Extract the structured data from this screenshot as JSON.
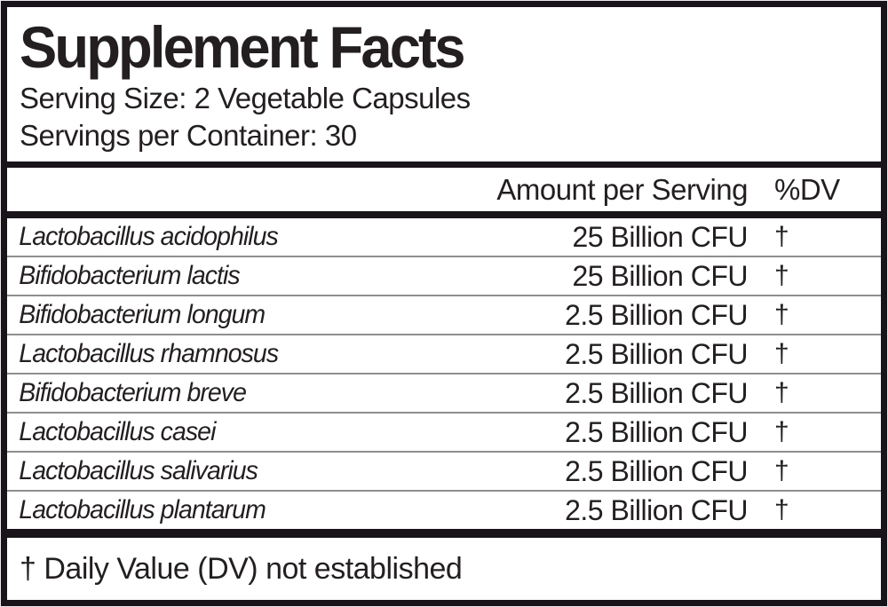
{
  "label": {
    "title": "Supplement Facts",
    "serving_size": "Serving Size: 2 Vegetable Capsules",
    "servings_per_container": "Servings per Container: 30",
    "columns": {
      "amount": "Amount per Serving",
      "dv": "%DV"
    },
    "rows": [
      {
        "name": "Lactobacillus acidophilus",
        "amount": "25 Billion CFU",
        "dv": "†"
      },
      {
        "name": "Bifidobacterium lactis",
        "amount": "25 Billion CFU",
        "dv": "†"
      },
      {
        "name": "Bifidobacterium longum",
        "amount": "2.5 Billion CFU",
        "dv": "†"
      },
      {
        "name": "Lactobacillus rhamnosus",
        "amount": "2.5 Billion CFU",
        "dv": "†"
      },
      {
        "name": "Bifidobacterium breve",
        "amount": "2.5 Billion CFU",
        "dv": "†"
      },
      {
        "name": "Lactobacillus casei",
        "amount": "2.5 Billion CFU",
        "dv": "†"
      },
      {
        "name": "Lactobacillus salivarius",
        "amount": "2.5 Billion CFU",
        "dv": "†"
      },
      {
        "name": "Lactobacillus plantarum",
        "amount": "2.5 Billion CFU",
        "dv": "†"
      }
    ],
    "footnote": "† Daily Value (DV) not established",
    "colors": {
      "text": "#231f20",
      "border": "#18141a",
      "row_divider": "#8f8f90",
      "background": "#ffffff"
    }
  }
}
